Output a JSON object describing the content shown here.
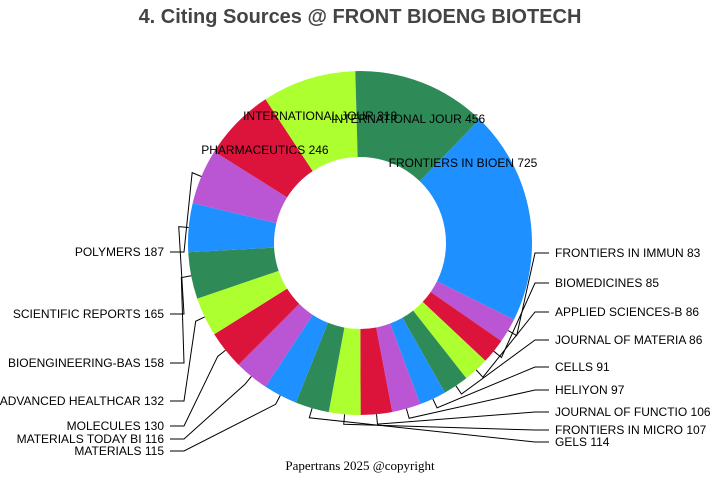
{
  "title": "4. Citing Sources @ FRONT BIOENG BIOTECH",
  "footer": "Papertrans 2025 @copyright",
  "chart_data": {
    "type": "pie",
    "title": "4. Citing Sources @ FRONT BIOENG BIOTECH",
    "donut": true,
    "slices": [
      {
        "label": "FRONTIERS IN BIOEN",
        "value": 725,
        "color": "#1e90ff"
      },
      {
        "label": "FRONTIERS IN IMMUN",
        "value": 83,
        "color": "#ba55d3"
      },
      {
        "label": "BIOMEDICINES",
        "value": 85,
        "color": "#dc143c"
      },
      {
        "label": "APPLIED SCIENCES-B",
        "value": 86,
        "color": "#adff2f"
      },
      {
        "label": "JOURNAL OF MATERIA",
        "value": 86,
        "color": "#2e8b57"
      },
      {
        "label": "CELLS",
        "value": 91,
        "color": "#1e90ff"
      },
      {
        "label": "HELIYON",
        "value": 97,
        "color": "#ba55d3"
      },
      {
        "label": "JOURNAL OF FUNCTIO",
        "value": 106,
        "color": "#dc143c"
      },
      {
        "label": "FRONTIERS IN MICRO",
        "value": 107,
        "color": "#adff2f"
      },
      {
        "label": "GELS",
        "value": 114,
        "color": "#2e8b57"
      },
      {
        "label": "MATERIALS",
        "value": 115,
        "color": "#1e90ff"
      },
      {
        "label": "MATERIALS TODAY BI",
        "value": 116,
        "color": "#ba55d3"
      },
      {
        "label": "MOLECULES",
        "value": 130,
        "color": "#dc143c"
      },
      {
        "label": "ADVANCED HEALTHCAR",
        "value": 132,
        "color": "#adff2f"
      },
      {
        "label": "BIOENGINEERING-BAS",
        "value": 158,
        "color": "#2e8b57"
      },
      {
        "label": "SCIENTIFIC REPORTS",
        "value": 165,
        "color": "#1e90ff"
      },
      {
        "label": "POLYMERS",
        "value": 187,
        "color": "#ba55d3"
      },
      {
        "label": "PHARMACEUTICS",
        "value": 246,
        "color": "#dc143c"
      },
      {
        "label": "INTERNATIONAL JOUR",
        "value": 318,
        "color": "#adff2f"
      },
      {
        "label": "INTERNATIONAL JOUR",
        "value": 456,
        "color": "#2e8b57"
      }
    ]
  }
}
